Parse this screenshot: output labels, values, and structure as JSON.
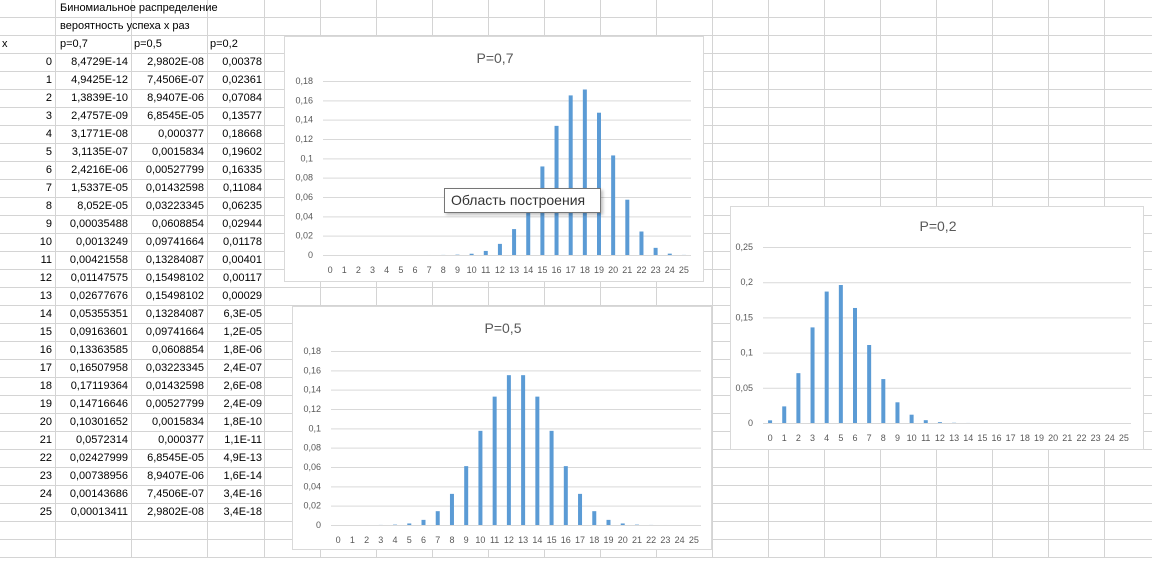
{
  "sheet": {
    "title": "Биномиальное распределение",
    "subtitle": "вероятность успеха x раз",
    "headers": [
      "x",
      "p=0,7",
      "p=0,5",
      "p=0,2"
    ],
    "rows": [
      [
        "0",
        "8,4729E-14",
        "2,9802E-08",
        "0,00378"
      ],
      [
        "1",
        "4,9425E-12",
        "7,4506E-07",
        "0,02361"
      ],
      [
        "2",
        "1,3839E-10",
        "8,9407E-06",
        "0,07084"
      ],
      [
        "3",
        "2,4757E-09",
        "6,8545E-05",
        "0,13577"
      ],
      [
        "4",
        "3,1771E-08",
        "0,000377",
        "0,18668"
      ],
      [
        "5",
        "3,1135E-07",
        "0,0015834",
        "0,19602"
      ],
      [
        "6",
        "2,4216E-06",
        "0,00527799",
        "0,16335"
      ],
      [
        "7",
        "1,5337E-05",
        "0,01432598",
        "0,11084"
      ],
      [
        "8",
        "8,052E-05",
        "0,03223345",
        "0,06235"
      ],
      [
        "9",
        "0,00035488",
        "0,0608854",
        "0,02944"
      ],
      [
        "10",
        "0,0013249",
        "0,09741664",
        "0,01178"
      ],
      [
        "11",
        "0,00421558",
        "0,13284087",
        "0,00401"
      ],
      [
        "12",
        "0,01147575",
        "0,15498102",
        "0,00117"
      ],
      [
        "13",
        "0,02677676",
        "0,15498102",
        "0,00029"
      ],
      [
        "14",
        "0,05355351",
        "0,13284087",
        "6,3E-05"
      ],
      [
        "15",
        "0,09163601",
        "0,09741664",
        "1,2E-05"
      ],
      [
        "16",
        "0,13363585",
        "0,0608854",
        "1,8E-06"
      ],
      [
        "17",
        "0,16507958",
        "0,03223345",
        "2,4E-07"
      ],
      [
        "18",
        "0,17119364",
        "0,01432598",
        "2,6E-08"
      ],
      [
        "19",
        "0,14716646",
        "0,00527799",
        "2,4E-09"
      ],
      [
        "20",
        "0,10301652",
        "0,0015834",
        "1,8E-10"
      ],
      [
        "21",
        "0,0572314",
        "0,000377",
        "1,1E-11"
      ],
      [
        "22",
        "0,02427999",
        "6,8545E-05",
        "4,9E-13"
      ],
      [
        "23",
        "0,00738956",
        "8,9407E-06",
        "1,6E-14"
      ],
      [
        "24",
        "0,00143686",
        "7,4506E-07",
        "3,4E-16"
      ],
      [
        "25",
        "0,00013411",
        "2,9802E-08",
        "3,4E-18"
      ]
    ]
  },
  "tooltip": "Область построения",
  "colors": {
    "bar": "#5b9bd5",
    "gridline": "#d9d9d9",
    "cell_grid": "#d4d4d4",
    "axis_text": "#595959"
  },
  "chart_data": [
    {
      "type": "bar",
      "title": "P=0,7",
      "categories": [
        "0",
        "1",
        "2",
        "3",
        "4",
        "5",
        "6",
        "7",
        "8",
        "9",
        "10",
        "11",
        "12",
        "13",
        "14",
        "15",
        "16",
        "17",
        "18",
        "19",
        "20",
        "21",
        "22",
        "23",
        "24",
        "25"
      ],
      "values": [
        0,
        0,
        0,
        0,
        0,
        0,
        2.4e-06,
        1.5e-05,
        8e-05,
        0.00035,
        0.0013,
        0.0042,
        0.0115,
        0.0268,
        0.0536,
        0.0916,
        0.1336,
        0.1651,
        0.1712,
        0.1472,
        0.103,
        0.0572,
        0.0243,
        0.0074,
        0.0014,
        0.0001
      ],
      "ylim": [
        0,
        0.18
      ],
      "yticks": [
        "0",
        "0,02",
        "0,04",
        "0,06",
        "0,08",
        "0,1",
        "0,12",
        "0,14",
        "0,16",
        "0,18"
      ],
      "xlabel": "",
      "ylabel": "",
      "grid": true,
      "legend": "none"
    },
    {
      "type": "bar",
      "title": "P=0,5",
      "categories": [
        "0",
        "1",
        "2",
        "3",
        "4",
        "5",
        "6",
        "7",
        "8",
        "9",
        "10",
        "11",
        "12",
        "13",
        "14",
        "15",
        "16",
        "17",
        "18",
        "19",
        "20",
        "21",
        "22",
        "23",
        "24",
        "25"
      ],
      "values": [
        0,
        7e-07,
        9e-06,
        7e-05,
        0.00038,
        0.0016,
        0.0053,
        0.0143,
        0.0322,
        0.0609,
        0.0974,
        0.1328,
        0.155,
        0.155,
        0.1328,
        0.0974,
        0.0609,
        0.0322,
        0.0143,
        0.0053,
        0.0016,
        0.00038,
        7e-05,
        9e-06,
        7e-07,
        0
      ],
      "ylim": [
        0,
        0.18
      ],
      "yticks": [
        "0",
        "0,02",
        "0,04",
        "0,06",
        "0,08",
        "0,1",
        "0,12",
        "0,14",
        "0,16",
        "0,18"
      ],
      "xlabel": "",
      "ylabel": "",
      "grid": true,
      "legend": "none"
    },
    {
      "type": "bar",
      "title": "P=0,2",
      "categories": [
        "0",
        "1",
        "2",
        "3",
        "4",
        "5",
        "6",
        "7",
        "8",
        "9",
        "10",
        "11",
        "12",
        "13",
        "14",
        "15",
        "16",
        "17",
        "18",
        "19",
        "20",
        "21",
        "22",
        "23",
        "24",
        "25"
      ],
      "values": [
        0.0038,
        0.0236,
        0.0708,
        0.1358,
        0.1867,
        0.196,
        0.1634,
        0.1108,
        0.0624,
        0.0294,
        0.0118,
        0.004,
        0.0012,
        0.0003,
        6e-05,
        1e-05,
        0,
        0,
        0,
        0,
        0,
        0,
        0,
        0,
        0,
        0
      ],
      "ylim": [
        0,
        0.25
      ],
      "yticks": [
        "0",
        "0,05",
        "0,1",
        "0,15",
        "0,2",
        "0,25"
      ],
      "xlabel": "",
      "ylabel": "",
      "grid": true,
      "legend": "none"
    }
  ]
}
